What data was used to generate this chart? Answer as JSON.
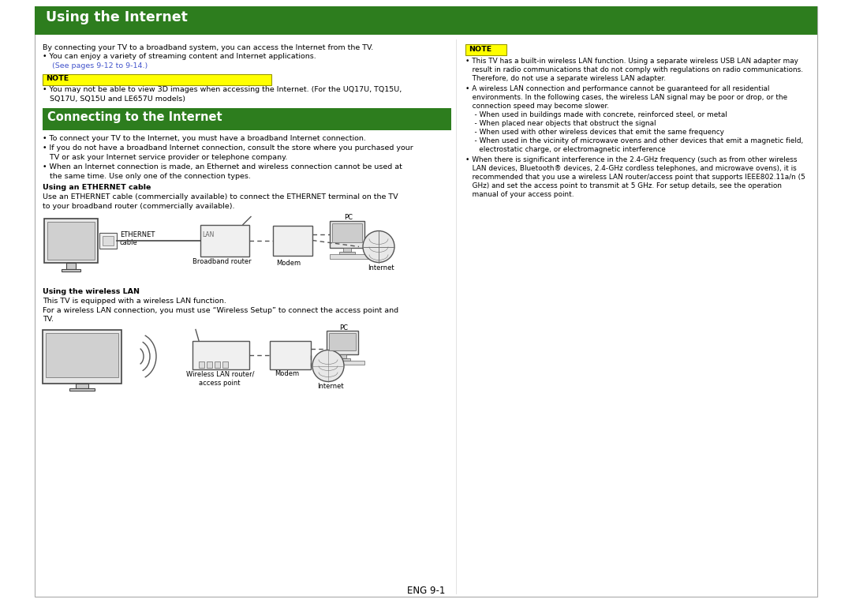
{
  "page_bg": "#ffffff",
  "title_bg": "#2d7d1e",
  "title_text": "Using the Internet",
  "title_color": "#ffffff",
  "section2_bg": "#2d7d1e",
  "section2_text": "Connecting to the Internet",
  "section2_color": "#ffffff",
  "note_bg": "#ffff00",
  "note_border": "#999900",
  "footer_text": "ENG 9-1",
  "body_font_size": 6.8,
  "small_font_size": 6.4,
  "title_font_size": 12.5,
  "section_font_size": 10.5,
  "intro_line1": "By connecting your TV to a broadband system, you can access the Internet from the TV.",
  "intro_bullet": "You can enjoy a variety of streaming content and Internet applications.",
  "intro_link": "(See pages 9-12 to 9-14.)",
  "note_left_label": "NOTE",
  "note_left_text": "You may not be able to view 3D images when accessing the Internet. (For the UQ17U, TQ15U, SQ17U, SQ15U and LE657U models)",
  "right_note_label": "NOTE",
  "right_bullet1_lines": [
    "This TV has a built-in wireless LAN function. Using a separate wireless USB LAN adapter may",
    "result in radio communications that do not comply with regulations on radio communications.",
    "Therefore, do not use a separate wireless LAN adapter."
  ],
  "right_bullet2_lines": [
    "A wireless LAN connection and performance cannot be guaranteed for all residential",
    "environments. In the following cases, the wireless LAN signal may be poor or drop, or the",
    "connection speed may become slower.",
    " - When used in buildings made with concrete, reinforced steel, or metal",
    " - When placed near objects that obstruct the signal",
    " - When used with other wireless devices that emit the same frequency",
    " - When used in the vicinity of microwave ovens and other devices that emit a magnetic field,",
    "   electrostatic charge, or electromagnetic interference"
  ],
  "right_bullet3_lines": [
    "When there is significant interference in the 2.4-GHz frequency (such as from other wireless",
    "LAN devices, Bluetooth® devices, 2.4-GHz cordless telephones, and microwave ovens), it is",
    "recommended that you use a wireless LAN router/access point that supports IEEE802.11a/n (5",
    "GHz) and set the access point to transmit at 5 GHz. For setup details, see the operation",
    "manual of your access point."
  ],
  "connect_bullet1": "To connect your TV to the Internet, you must have a broadband Internet connection.",
  "connect_bullet2_lines": [
    "If you do not have a broadband Internet connection, consult the store where you purchased your",
    "TV or ask your Internet service provider or telephone company."
  ],
  "connect_bullet3_lines": [
    "When an Internet connection is made, an Ethernet and wireless connection cannot be used at",
    "the same time. Use only one of the connection types."
  ],
  "ethernet_title": "Using an ETHERNET cable",
  "ethernet_text_lines": [
    "Use an ETHERNET cable (commercially available) to connect the ETHERNET terminal on the TV",
    "to your broadband router (commercially available)."
  ],
  "wireless_title": "Using the wireless LAN",
  "wireless_line1": "This TV is equipped with a wireless LAN function.",
  "wireless_line2": "For a wireless LAN connection, you must use “Wireless Setup” to connect the access point and",
  "wireless_line3": "TV."
}
